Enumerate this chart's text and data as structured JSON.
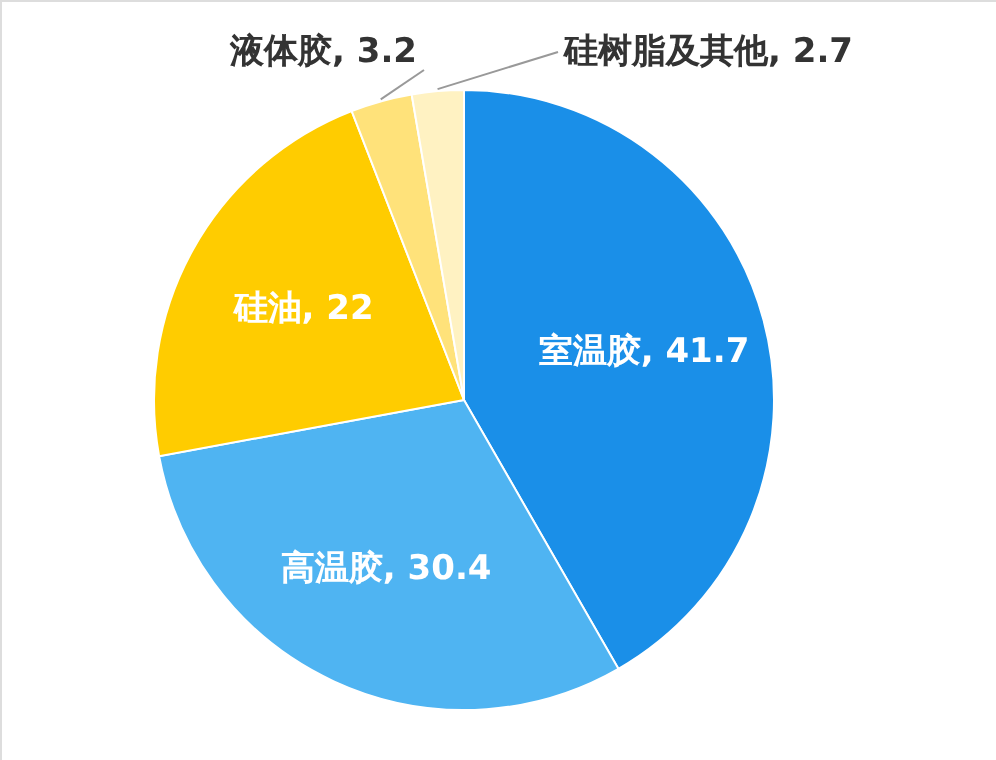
{
  "chart_data": {
    "type": "pie",
    "categories": [
      "室温胶",
      "高温胶",
      "硅油",
      "液体胶",
      "硅树脂及其他"
    ],
    "values": [
      41.7,
      30.4,
      22,
      3.2,
      2.7
    ],
    "colors": [
      "#1a8fe8",
      "#4fb4f2",
      "#ffcc00",
      "#ffe27a",
      "#fff2c2"
    ],
    "value_labels": [
      ", 41.7",
      ", 30.4",
      ", 22",
      ", 3.2",
      ", 2.7"
    ],
    "legend": false
  }
}
